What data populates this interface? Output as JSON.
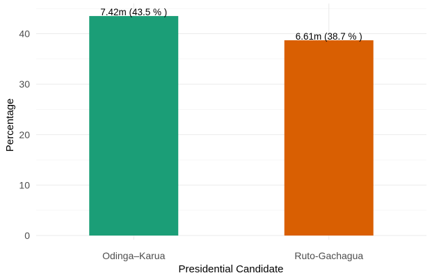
{
  "chart_data": {
    "type": "bar",
    "title": "",
    "xlabel": "Presidential Candidate",
    "ylabel": "Percentage",
    "categories": [
      "Odinga–Karua",
      "Ruto-Gachagua"
    ],
    "values": [
      43.5,
      38.7
    ],
    "data_labels": [
      "7.42m (43.5 % )",
      "6.61m (38.7 % )"
    ],
    "colors": [
      "#1b9e77",
      "#d95f02"
    ],
    "ylim": [
      0,
      46
    ],
    "yticks": [
      0,
      10,
      20,
      30,
      40
    ],
    "grid": true,
    "legend": "none"
  }
}
